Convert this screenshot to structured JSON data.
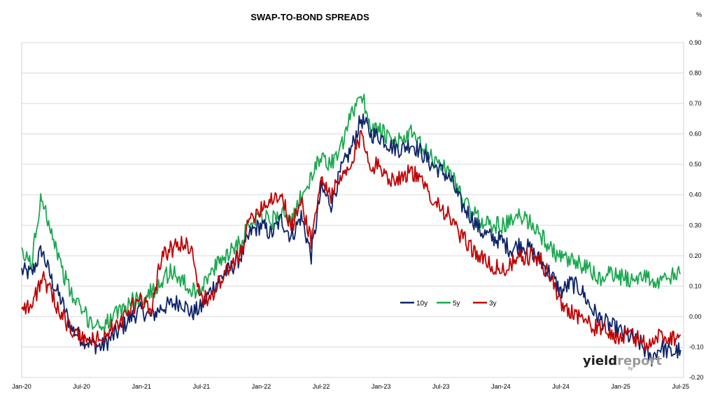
{
  "chart_data": {
    "type": "line",
    "title": "SWAP-TO-BOND SPREADS",
    "ylabel": "%",
    "ylim": [
      -0.2,
      0.9
    ],
    "y_ticks": [
      "0.90",
      "0.80",
      "0.70",
      "0.60",
      "0.50",
      "0.40",
      "0.30",
      "0.20",
      "0.10",
      "0.00",
      "-0.10",
      "-0.20"
    ],
    "y_axis_side": "right",
    "grid": "horizontal",
    "legend_position": "center-right",
    "x_ticks": [
      "Jan-20",
      "Jul-20",
      "Jan-21",
      "Jul-21",
      "Jan-22",
      "Jul-22",
      "Jan-23",
      "Jul-23",
      "Jan-24",
      "Jul-24",
      "Jan-25",
      "Jul-25"
    ],
    "x_tick_dates": [
      "2020-01",
      "2020-07",
      "2021-01",
      "2021-07",
      "2022-01",
      "2022-07",
      "2023-01",
      "2023-07",
      "2024-01",
      "2024-07",
      "2025-01",
      "2025-07"
    ],
    "series": [
      {
        "name": "10y",
        "color": "#0d2469",
        "points": [
          [
            "2020-01",
            0.15
          ],
          [
            "2020-02",
            0.14
          ],
          [
            "2020-03",
            0.22
          ],
          [
            "2020-04",
            0.12
          ],
          [
            "2020-05",
            0.05
          ],
          [
            "2020-06",
            -0.04
          ],
          [
            "2020-07",
            -0.07
          ],
          [
            "2020-08",
            -0.09
          ],
          [
            "2020-09",
            -0.1
          ],
          [
            "2020-10",
            -0.07
          ],
          [
            "2020-11",
            -0.04
          ],
          [
            "2020-12",
            0.0
          ],
          [
            "2021-01",
            0.02
          ],
          [
            "2021-02",
            0.0
          ],
          [
            "2021-03",
            0.03
          ],
          [
            "2021-04",
            0.04
          ],
          [
            "2021-05",
            0.05
          ],
          [
            "2021-06",
            0.01
          ],
          [
            "2021-07",
            0.03
          ],
          [
            "2021-08",
            0.09
          ],
          [
            "2021-09",
            0.13
          ],
          [
            "2021-10",
            0.16
          ],
          [
            "2021-11",
            0.2
          ],
          [
            "2021-12",
            0.28
          ],
          [
            "2022-01",
            0.3
          ],
          [
            "2022-02",
            0.27
          ],
          [
            "2022-03",
            0.32
          ],
          [
            "2022-04",
            0.26
          ],
          [
            "2022-05",
            0.33
          ],
          [
            "2022-06",
            0.2
          ],
          [
            "2022-07",
            0.42
          ],
          [
            "2022-08",
            0.37
          ],
          [
            "2022-09",
            0.48
          ],
          [
            "2022-10",
            0.55
          ],
          [
            "2022-11",
            0.65
          ],
          [
            "2022-12",
            0.6
          ],
          [
            "2023-01",
            0.59
          ],
          [
            "2023-02",
            0.56
          ],
          [
            "2023-03",
            0.55
          ],
          [
            "2023-04",
            0.57
          ],
          [
            "2023-05",
            0.54
          ],
          [
            "2023-06",
            0.5
          ],
          [
            "2023-07",
            0.48
          ],
          [
            "2023-08",
            0.45
          ],
          [
            "2023-09",
            0.37
          ],
          [
            "2023-10",
            0.33
          ],
          [
            "2023-11",
            0.28
          ],
          [
            "2023-12",
            0.26
          ],
          [
            "2024-01",
            0.25
          ],
          [
            "2024-02",
            0.22
          ],
          [
            "2024-03",
            0.24
          ],
          [
            "2024-04",
            0.22
          ],
          [
            "2024-05",
            0.18
          ],
          [
            "2024-06",
            0.14
          ],
          [
            "2024-07",
            0.08
          ],
          [
            "2024-08",
            0.11
          ],
          [
            "2024-09",
            0.09
          ],
          [
            "2024-10",
            0.03
          ],
          [
            "2024-11",
            -0.01
          ],
          [
            "2024-12",
            -0.03
          ],
          [
            "2025-01",
            -0.05
          ],
          [
            "2025-02",
            -0.07
          ],
          [
            "2025-03",
            -0.09
          ],
          [
            "2025-04",
            -0.14
          ],
          [
            "2025-05",
            -0.1
          ],
          [
            "2025-06",
            -0.12
          ],
          [
            "2025-07",
            -0.11
          ]
        ]
      },
      {
        "name": "5y",
        "color": "#1aa84f",
        "points": [
          [
            "2020-01",
            0.2
          ],
          [
            "2020-02",
            0.18
          ],
          [
            "2020-03",
            0.4
          ],
          [
            "2020-04",
            0.28
          ],
          [
            "2020-05",
            0.16
          ],
          [
            "2020-06",
            0.07
          ],
          [
            "2020-07",
            0.02
          ],
          [
            "2020-08",
            -0.02
          ],
          [
            "2020-09",
            -0.03
          ],
          [
            "2020-10",
            -0.01
          ],
          [
            "2020-11",
            0.02
          ],
          [
            "2020-12",
            0.05
          ],
          [
            "2021-01",
            0.06
          ],
          [
            "2021-02",
            0.08
          ],
          [
            "2021-03",
            0.12
          ],
          [
            "2021-04",
            0.15
          ],
          [
            "2021-05",
            0.12
          ],
          [
            "2021-06",
            0.08
          ],
          [
            "2021-07",
            0.1
          ],
          [
            "2021-08",
            0.14
          ],
          [
            "2021-09",
            0.19
          ],
          [
            "2021-10",
            0.22
          ],
          [
            "2021-11",
            0.25
          ],
          [
            "2021-12",
            0.32
          ],
          [
            "2022-01",
            0.34
          ],
          [
            "2022-02",
            0.31
          ],
          [
            "2022-03",
            0.35
          ],
          [
            "2022-04",
            0.3
          ],
          [
            "2022-05",
            0.4
          ],
          [
            "2022-06",
            0.45
          ],
          [
            "2022-07",
            0.53
          ],
          [
            "2022-08",
            0.5
          ],
          [
            "2022-09",
            0.55
          ],
          [
            "2022-10",
            0.66
          ],
          [
            "2022-11",
            0.74
          ],
          [
            "2022-12",
            0.62
          ],
          [
            "2023-01",
            0.61
          ],
          [
            "2023-02",
            0.57
          ],
          [
            "2023-03",
            0.58
          ],
          [
            "2023-04",
            0.6
          ],
          [
            "2023-05",
            0.56
          ],
          [
            "2023-06",
            0.52
          ],
          [
            "2023-07",
            0.5
          ],
          [
            "2023-08",
            0.47
          ],
          [
            "2023-09",
            0.4
          ],
          [
            "2023-10",
            0.34
          ],
          [
            "2023-11",
            0.32
          ],
          [
            "2023-12",
            0.3
          ],
          [
            "2024-01",
            0.3
          ],
          [
            "2024-02",
            0.31
          ],
          [
            "2024-03",
            0.33
          ],
          [
            "2024-04",
            0.31
          ],
          [
            "2024-05",
            0.27
          ],
          [
            "2024-06",
            0.22
          ],
          [
            "2024-07",
            0.19
          ],
          [
            "2024-08",
            0.18
          ],
          [
            "2024-09",
            0.17
          ],
          [
            "2024-10",
            0.15
          ],
          [
            "2024-11",
            0.12
          ],
          [
            "2024-12",
            0.14
          ],
          [
            "2025-01",
            0.13
          ],
          [
            "2025-02",
            0.12
          ],
          [
            "2025-03",
            0.14
          ],
          [
            "2025-04",
            0.12
          ],
          [
            "2025-05",
            0.11
          ],
          [
            "2025-06",
            0.13
          ],
          [
            "2025-07",
            0.14
          ]
        ]
      },
      {
        "name": "3y",
        "color": "#c00000",
        "points": [
          [
            "2020-01",
            0.04
          ],
          [
            "2020-02",
            0.03
          ],
          [
            "2020-03",
            0.13
          ],
          [
            "2020-04",
            0.07
          ],
          [
            "2020-05",
            0.01
          ],
          [
            "2020-06",
            -0.05
          ],
          [
            "2020-07",
            -0.07
          ],
          [
            "2020-08",
            -0.08
          ],
          [
            "2020-09",
            -0.07
          ],
          [
            "2020-10",
            -0.04
          ],
          [
            "2020-11",
            -0.02
          ],
          [
            "2020-12",
            0.03
          ],
          [
            "2021-01",
            0.05
          ],
          [
            "2021-02",
            0.03
          ],
          [
            "2021-03",
            0.2
          ],
          [
            "2021-04",
            0.22
          ],
          [
            "2021-05",
            0.24
          ],
          [
            "2021-06",
            0.23
          ],
          [
            "2021-07",
            0.05
          ],
          [
            "2021-08",
            0.07
          ],
          [
            "2021-09",
            0.12
          ],
          [
            "2021-10",
            0.16
          ],
          [
            "2021-11",
            0.22
          ],
          [
            "2021-12",
            0.33
          ],
          [
            "2022-01",
            0.36
          ],
          [
            "2022-02",
            0.39
          ],
          [
            "2022-03",
            0.4
          ],
          [
            "2022-04",
            0.29
          ],
          [
            "2022-05",
            0.38
          ],
          [
            "2022-06",
            0.25
          ],
          [
            "2022-07",
            0.45
          ],
          [
            "2022-08",
            0.4
          ],
          [
            "2022-09",
            0.45
          ],
          [
            "2022-10",
            0.49
          ],
          [
            "2022-11",
            0.6
          ],
          [
            "2022-12",
            0.5
          ],
          [
            "2023-01",
            0.49
          ],
          [
            "2023-02",
            0.45
          ],
          [
            "2023-03",
            0.46
          ],
          [
            "2023-04",
            0.48
          ],
          [
            "2023-05",
            0.44
          ],
          [
            "2023-06",
            0.4
          ],
          [
            "2023-07",
            0.36
          ],
          [
            "2023-08",
            0.32
          ],
          [
            "2023-09",
            0.26
          ],
          [
            "2023-10",
            0.23
          ],
          [
            "2023-11",
            0.19
          ],
          [
            "2023-12",
            0.17
          ],
          [
            "2024-01",
            0.15
          ],
          [
            "2024-02",
            0.17
          ],
          [
            "2024-03",
            0.19
          ],
          [
            "2024-04",
            0.2
          ],
          [
            "2024-05",
            0.18
          ],
          [
            "2024-06",
            0.13
          ],
          [
            "2024-07",
            0.04
          ],
          [
            "2024-08",
            0.02
          ],
          [
            "2024-09",
            0.0
          ],
          [
            "2024-10",
            -0.03
          ],
          [
            "2024-11",
            -0.04
          ],
          [
            "2024-12",
            -0.06
          ],
          [
            "2025-01",
            -0.07
          ],
          [
            "2025-02",
            -0.06
          ],
          [
            "2025-03",
            -0.08
          ],
          [
            "2025-04",
            -0.09
          ],
          [
            "2025-05",
            -0.06
          ],
          [
            "2025-06",
            -0.07
          ],
          [
            "2025-07",
            -0.06
          ]
        ]
      }
    ]
  },
  "watermark": {
    "brand_main": "yield",
    "brand_light": "report",
    "brand_sub": "by"
  }
}
